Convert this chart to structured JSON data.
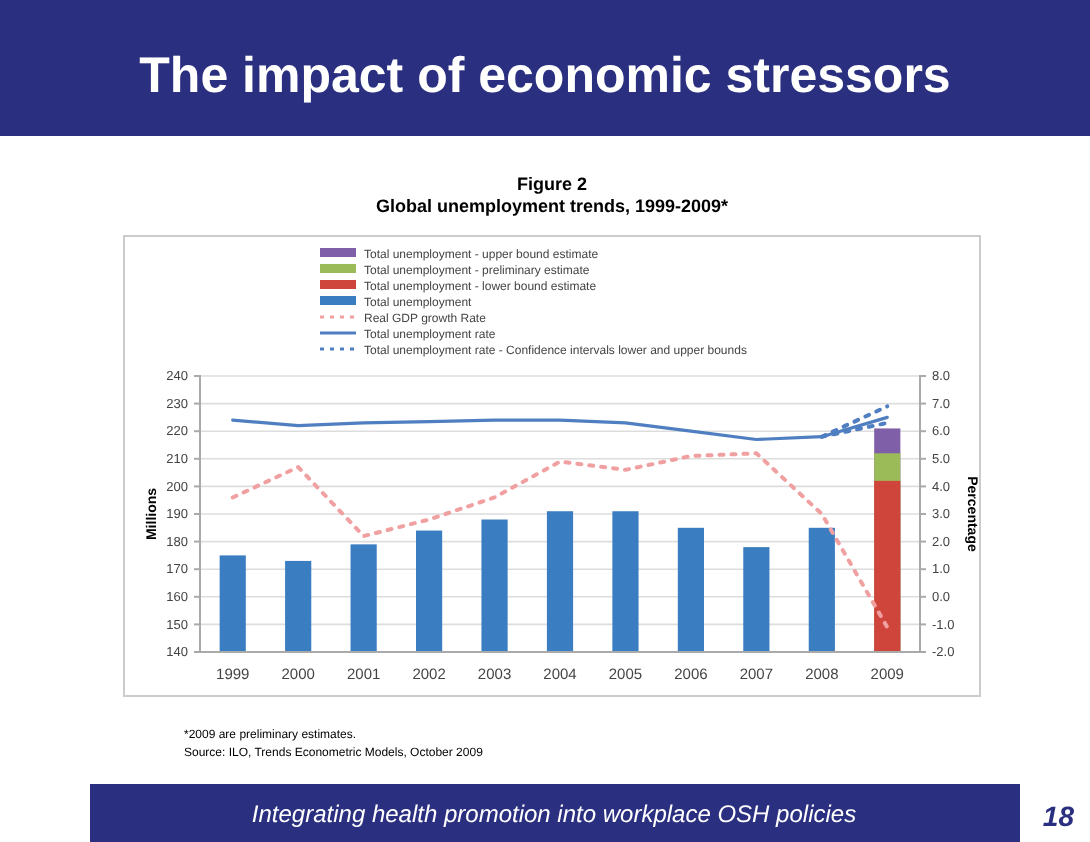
{
  "chart_data": {
    "type": "bar",
    "title": "The impact of economic stressors",
    "subtitle": "Figure 2",
    "annotations": [
      "Global unemployment trends, 1999-2009*",
      "*2009 are preliminary estimates.",
      "Source: ILO, Trends Econometric Models, October 2009",
      "Integrating health promotion into workplace OSH policies",
      "18"
    ],
    "ylabel": "Millions",
    "y2label": "Percentage",
    "categories": [
      "1999",
      "2000",
      "2001",
      "2002",
      "2003",
      "2004",
      "2005",
      "2006",
      "2007",
      "2008",
      "2009"
    ],
    "grid": "y",
    "legend": "top",
    "marker": "none",
    "ylim": [
      140,
      240
    ],
    "yticks": [
      140,
      150,
      160,
      170,
      180,
      190,
      200,
      210,
      220,
      230,
      240
    ],
    "y2lim": [
      -2,
      8
    ],
    "y2ticks": [
      {
        "value": -2,
        "label": "-2.0"
      },
      {
        "value": -1,
        "label": "-1.0"
      },
      {
        "value": 0,
        "label": "0.0"
      },
      {
        "value": 1,
        "label": "1.0"
      },
      {
        "value": 2,
        "label": "2.0"
      },
      {
        "value": 3,
        "label": "3.0"
      },
      {
        "value": 4,
        "label": "4.0"
      },
      {
        "value": 5,
        "label": "5.0"
      },
      {
        "value": 6,
        "label": "6.0"
      },
      {
        "value": 7,
        "label": "7.0"
      },
      {
        "value": 8,
        "label": "8.0"
      }
    ],
    "series": [
      {
        "name": "Total unemployment - upper bound estimate",
        "color": "#7f5fa8",
        "values": [
          null,
          null,
          null,
          null,
          null,
          null,
          null,
          null,
          null,
          null,
          221
        ]
      },
      {
        "name": "Total unemployment - preliminary estimate",
        "color": "#9bbb59",
        "values": [
          null,
          null,
          null,
          null,
          null,
          null,
          null,
          null,
          null,
          null,
          212
        ]
      },
      {
        "name": "Total unemployment - lower bound estimate",
        "color": "#d0453b",
        "values": [
          null,
          null,
          null,
          null,
          null,
          null,
          null,
          null,
          null,
          null,
          202
        ]
      },
      {
        "name": "Total unemployment",
        "color": "#3a7dc0",
        "values": [
          175,
          173,
          179,
          184,
          188,
          191,
          191,
          185,
          178,
          185,
          null
        ]
      },
      {
        "name": "Real GDP growth Rate",
        "type": "line",
        "axis": "y2",
        "line_style": "dotted",
        "color": "#f0a0a0",
        "values": [
          3.6,
          4.7,
          2.2,
          2.8,
          3.6,
          4.9,
          4.6,
          5.1,
          5.2,
          3.0,
          -1.1
        ]
      },
      {
        "name": "Total unemployment rate",
        "type": "line",
        "axis": "y2",
        "line_style": "solid",
        "color": "#4f7fc0",
        "values": [
          6.4,
          6.2,
          6.3,
          6.35,
          6.4,
          6.4,
          6.3,
          6.0,
          5.7,
          5.8,
          6.5
        ]
      },
      {
        "name": "Total unemployment rate - Confidence intervals lower and upper bounds",
        "type": "line",
        "axis": "y2",
        "line_style": "dotted",
        "color": "#4f7fc0",
        "values": [
          null,
          null,
          null,
          null,
          null,
          null,
          null,
          null,
          null,
          5.8,
          6.3
        ]
      },
      {
        "type": "line",
        "axis": "y2",
        "line_style": "dotted",
        "color": "#4f7fc0",
        "values": [
          null,
          null,
          null,
          null,
          null,
          null,
          null,
          null,
          null,
          5.8,
          6.9
        ]
      }
    ]
  }
}
